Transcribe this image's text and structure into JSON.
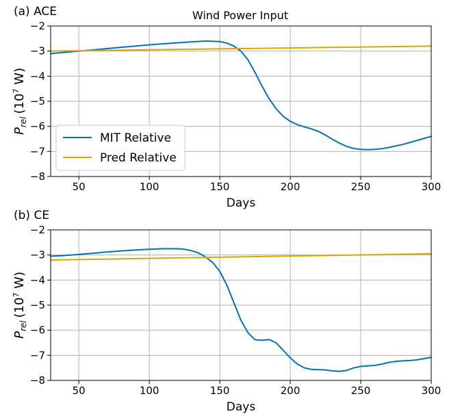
{
  "figure_title": "Wind Power Input",
  "colors": {
    "mit": "#0072B2",
    "pred": "#E69F00",
    "grid": "#b0b0b0"
  },
  "chart_data": [
    {
      "type": "line",
      "panel_label": "(a) ACE",
      "title": "Wind Power Input",
      "xlabel": "Days",
      "ylabel": "P_rel (10^7 W)",
      "ylabel_parts": {
        "symbol": "P",
        "sub": "rel",
        "pre_unit": "(10",
        "exp": "7",
        "post_unit": " W)"
      },
      "xlim": [
        30,
        300
      ],
      "ylim": [
        -8,
        -2
      ],
      "xticks": [
        50,
        100,
        150,
        200,
        250,
        300
      ],
      "yticks": [
        -2,
        -3,
        -4,
        -5,
        -6,
        -7,
        -8
      ],
      "grid": true,
      "legend": {
        "position": "lower-left",
        "entries": [
          "MIT Relative",
          "Pred Relative"
        ]
      },
      "series": [
        {
          "name": "MIT Relative",
          "color": "#0072B2",
          "x": [
            30,
            40,
            50,
            60,
            70,
            80,
            90,
            100,
            110,
            120,
            130,
            140,
            150,
            155,
            160,
            165,
            170,
            175,
            180,
            185,
            190,
            195,
            200,
            205,
            210,
            215,
            220,
            225,
            230,
            235,
            240,
            245,
            250,
            255,
            260,
            265,
            270,
            275,
            280,
            285,
            290,
            295,
            300
          ],
          "y": [
            -3.1,
            -3.05,
            -3.0,
            -2.95,
            -2.9,
            -2.85,
            -2.8,
            -2.75,
            -2.71,
            -2.67,
            -2.63,
            -2.6,
            -2.62,
            -2.68,
            -2.8,
            -3.0,
            -3.35,
            -3.85,
            -4.4,
            -4.9,
            -5.3,
            -5.6,
            -5.8,
            -5.93,
            -6.02,
            -6.1,
            -6.2,
            -6.35,
            -6.52,
            -6.67,
            -6.8,
            -6.88,
            -6.92,
            -6.93,
            -6.92,
            -6.89,
            -6.84,
            -6.78,
            -6.72,
            -6.64,
            -6.56,
            -6.48,
            -6.4
          ]
        },
        {
          "name": "Pred Relative",
          "color": "#E69F00",
          "x": [
            30,
            300
          ],
          "y": [
            -3.0,
            -2.8
          ]
        }
      ]
    },
    {
      "type": "line",
      "panel_label": "(b) CE",
      "title": "",
      "xlabel": "Days",
      "ylabel": "P_rel (10^7 W)",
      "ylabel_parts": {
        "symbol": "P",
        "sub": "rel",
        "pre_unit": "(10",
        "exp": "7",
        "post_unit": " W)"
      },
      "xlim": [
        30,
        300
      ],
      "ylim": [
        -8,
        -2
      ],
      "xticks": [
        50,
        100,
        150,
        200,
        250,
        300
      ],
      "yticks": [
        -2,
        -3,
        -4,
        -5,
        -6,
        -7,
        -8
      ],
      "grid": true,
      "series": [
        {
          "name": "MIT Relative",
          "color": "#0072B2",
          "x": [
            30,
            40,
            50,
            60,
            70,
            80,
            90,
            100,
            110,
            120,
            125,
            130,
            135,
            140,
            145,
            150,
            155,
            160,
            165,
            170,
            175,
            180,
            185,
            190,
            195,
            200,
            205,
            210,
            215,
            220,
            225,
            230,
            235,
            240,
            245,
            250,
            255,
            260,
            265,
            270,
            275,
            280,
            285,
            290,
            295,
            300
          ],
          "y": [
            -3.05,
            -3.02,
            -2.98,
            -2.93,
            -2.88,
            -2.84,
            -2.8,
            -2.77,
            -2.75,
            -2.75,
            -2.77,
            -2.83,
            -2.92,
            -3.08,
            -3.3,
            -3.65,
            -4.2,
            -4.9,
            -5.6,
            -6.1,
            -6.38,
            -6.4,
            -6.37,
            -6.5,
            -6.8,
            -7.1,
            -7.35,
            -7.5,
            -7.56,
            -7.57,
            -7.58,
            -7.62,
            -7.64,
            -7.6,
            -7.5,
            -7.44,
            -7.42,
            -7.4,
            -7.35,
            -7.28,
            -7.24,
            -7.22,
            -7.21,
            -7.18,
            -7.13,
            -7.08
          ]
        },
        {
          "name": "Pred Relative",
          "color": "#E69F00",
          "x": [
            30,
            300
          ],
          "y": [
            -3.2,
            -2.95
          ]
        }
      ]
    }
  ]
}
